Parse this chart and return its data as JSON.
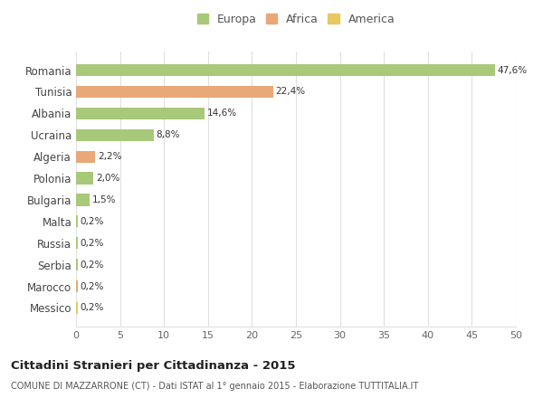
{
  "countries": [
    "Romania",
    "Tunisia",
    "Albania",
    "Ucraina",
    "Algeria",
    "Polonia",
    "Bulgaria",
    "Malta",
    "Russia",
    "Serbia",
    "Marocco",
    "Messico"
  ],
  "values": [
    47.6,
    22.4,
    14.6,
    8.8,
    2.2,
    2.0,
    1.5,
    0.2,
    0.2,
    0.2,
    0.2,
    0.2
  ],
  "labels": [
    "47,6%",
    "22,4%",
    "14,6%",
    "8,8%",
    "2,2%",
    "2,0%",
    "1,5%",
    "0,2%",
    "0,2%",
    "0,2%",
    "0,2%",
    "0,2%"
  ],
  "continent": [
    "Europa",
    "Africa",
    "Europa",
    "Europa",
    "Africa",
    "Europa",
    "Europa",
    "Europa",
    "Europa",
    "Europa",
    "Africa",
    "America"
  ],
  "legend_labels": [
    "Europa",
    "Africa",
    "America"
  ],
  "legend_colors": [
    "#a8c87a",
    "#e8a878",
    "#e8c860"
  ],
  "xlim": [
    0,
    50
  ],
  "xticks": [
    0,
    5,
    10,
    15,
    20,
    25,
    30,
    35,
    40,
    45,
    50
  ],
  "title": "Cittadini Stranieri per Cittadinanza - 2015",
  "subtitle": "COMUNE DI MAZZARRONE (CT) - Dati ISTAT al 1° gennaio 2015 - Elaborazione TUTTITALIA.IT",
  "background_color": "#ffffff",
  "grid_color": "#e0e0e0"
}
